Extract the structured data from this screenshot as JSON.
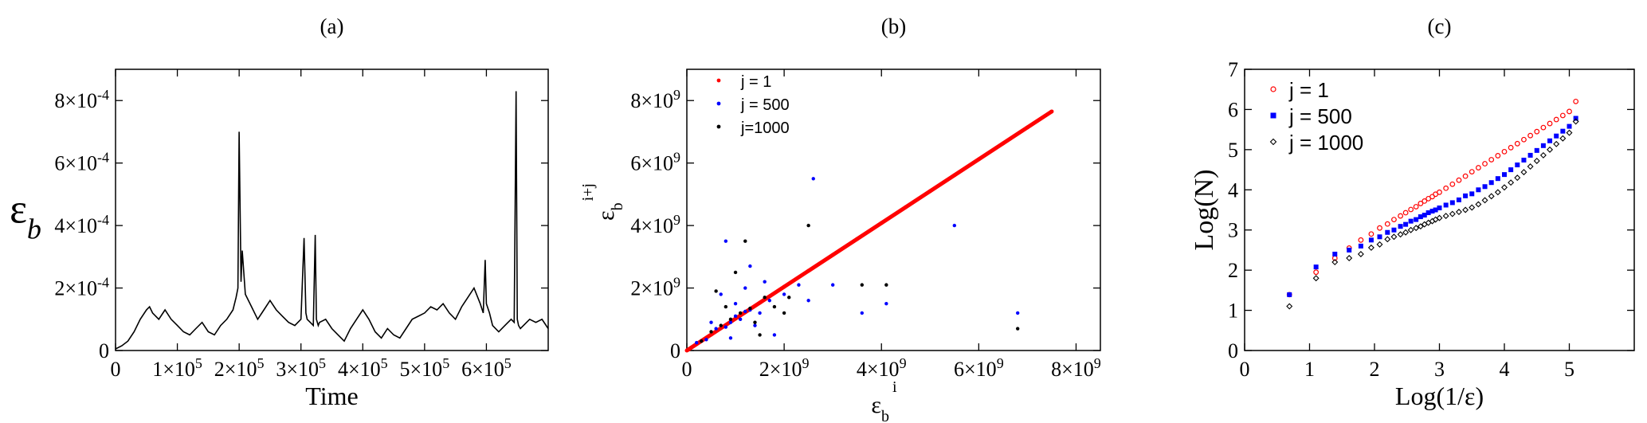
{
  "chart_data": [
    {
      "type": "line",
      "title": "(a)",
      "xlabel": "Time",
      "ylabel_symbol": "ε",
      "ylabel_sub": "b",
      "xlim": [
        0,
        700000
      ],
      "ylim": [
        0,
        0.0009
      ],
      "x_ticks": [
        0,
        100000,
        200000,
        300000,
        400000,
        500000,
        600000
      ],
      "x_tick_labels": [
        {
          "mantissa": "0",
          "exp": ""
        },
        {
          "mantissa": "1×10",
          "exp": "5"
        },
        {
          "mantissa": "2×10",
          "exp": "5"
        },
        {
          "mantissa": "3×10",
          "exp": "5"
        },
        {
          "mantissa": "4×10",
          "exp": "5"
        },
        {
          "mantissa": "5×10",
          "exp": "5"
        },
        {
          "mantissa": "6×10",
          "exp": "5"
        }
      ],
      "y_ticks": [
        0,
        0.0002,
        0.0004,
        0.0006,
        0.0008
      ],
      "y_tick_labels": [
        {
          "mantissa": "0",
          "exp": ""
        },
        {
          "mantissa": "2×10",
          "exp": "-4"
        },
        {
          "mantissa": "4×10",
          "exp": "-4"
        },
        {
          "mantissa": "6×10",
          "exp": "-4"
        },
        {
          "mantissa": "8×10",
          "exp": "-4"
        }
      ],
      "series": [
        {
          "color": "#000000",
          "x": [
            0,
            10000,
            20000,
            30000,
            40000,
            50000,
            55000,
            60000,
            70000,
            80000,
            90000,
            100000,
            110000,
            120000,
            130000,
            140000,
            150000,
            160000,
            170000,
            180000,
            190000,
            195000,
            198000,
            200000,
            203000,
            205000,
            210000,
            220000,
            230000,
            240000,
            250000,
            260000,
            270000,
            280000,
            290000,
            300000,
            305000,
            308000,
            310000,
            315000,
            320000,
            323000,
            325000,
            328000,
            330000,
            340000,
            350000,
            360000,
            370000,
            380000,
            390000,
            400000,
            410000,
            420000,
            430000,
            440000,
            450000,
            460000,
            470000,
            480000,
            490000,
            500000,
            510000,
            520000,
            530000,
            540000,
            550000,
            560000,
            570000,
            580000,
            590000,
            595000,
            598000,
            600000,
            605000,
            610000,
            620000,
            630000,
            640000,
            645000,
            648000,
            650000,
            652000,
            655000,
            660000,
            670000,
            680000,
            690000,
            700000
          ],
          "y": [
            5e-06,
            1.5e-05,
            3e-05,
            6e-05,
            0.0001,
            0.00013,
            0.00014,
            0.00012,
            0.0001,
            0.00013,
            0.0001,
            8e-05,
            6e-05,
            5e-05,
            7e-05,
            9e-05,
            6e-05,
            5e-05,
            8e-05,
            0.0001,
            0.00013,
            0.00017,
            0.0002,
            0.0007,
            0.00022,
            0.00032,
            0.00018,
            0.00014,
            0.0001,
            0.00013,
            0.00016,
            0.00013,
            0.00011,
            9e-05,
            8e-05,
            0.0001,
            0.00036,
            0.00012,
            0.0001,
            9e-05,
            8e-05,
            0.00037,
            0.0001,
            8e-05,
            9e-05,
            0.0001,
            7e-05,
            5e-05,
            3e-05,
            7e-05,
            0.0001,
            0.00013,
            0.0001,
            6e-05,
            4e-05,
            7e-05,
            5e-05,
            4e-05,
            7e-05,
            0.0001,
            0.00011,
            0.00012,
            0.00014,
            0.00013,
            0.00015,
            0.00012,
            0.0001,
            0.00014,
            0.00017,
            0.0002,
            0.00015,
            0.00012,
            0.00029,
            0.00015,
            0.00012,
            8e-05,
            6e-05,
            8e-05,
            0.0001,
            9e-05,
            0.00083,
            0.0001,
            8e-05,
            7e-05,
            8e-05,
            0.0001,
            9e-05,
            0.0001,
            7e-05
          ]
        }
      ]
    },
    {
      "type": "scatter",
      "title": "(b)",
      "xlabel_symbol": "ε",
      "xlabel_sub": "b",
      "xlabel_sup": "i",
      "ylabel_symbol": "ε",
      "ylabel_sub": "b",
      "ylabel_sup": "i+j",
      "xlim": [
        0,
        8500000000
      ],
      "ylim": [
        0,
        9000000000
      ],
      "x_ticks": [
        0,
        2000000000,
        4000000000,
        6000000000,
        8000000000
      ],
      "x_tick_labels": [
        {
          "mantissa": "0",
          "exp": ""
        },
        {
          "mantissa": "2×10",
          "exp": "9"
        },
        {
          "mantissa": "4×10",
          "exp": "9"
        },
        {
          "mantissa": "6×10",
          "exp": "9"
        },
        {
          "mantissa": "8×10",
          "exp": "9"
        }
      ],
      "y_ticks": [
        0,
        2000000000,
        4000000000,
        6000000000,
        8000000000
      ],
      "y_tick_labels": [
        {
          "mantissa": "0",
          "exp": ""
        },
        {
          "mantissa": "2×10",
          "exp": "9"
        },
        {
          "mantissa": "4×10",
          "exp": "9"
        },
        {
          "mantissa": "6×10",
          "exp": "9"
        },
        {
          "mantissa": "8×10",
          "exp": "9"
        }
      ],
      "legend_position": "top-left",
      "series": [
        {
          "name": "j = 1",
          "color": "#ff0000",
          "x": [
            0,
            500000000,
            1000000000,
            1500000000,
            2000000000,
            2500000000,
            3000000000,
            3500000000,
            4000000000,
            4500000000,
            5000000000,
            5500000000,
            6000000000,
            6500000000,
            7000000000,
            7500000000
          ],
          "y": [
            0,
            510000000,
            1020000000,
            1530000000,
            2040000000,
            2550000000,
            3060000000,
            3570000000,
            4080000000,
            4590000000,
            5100000000,
            5610000000,
            6120000000,
            6630000000,
            7140000000,
            7650000000
          ]
        },
        {
          "name": "j = 500",
          "color": "#0000ff",
          "x": [
            200000000,
            400000000,
            600000000,
            800000000,
            900000000,
            1000000000,
            1100000000,
            1200000000,
            1300000000,
            1500000000,
            1700000000,
            800000000,
            1000000000,
            1200000000,
            1400000000,
            1600000000,
            2000000000,
            2300000000,
            2600000000,
            3000000000,
            3600000000,
            4100000000,
            5500000000,
            6800000000,
            900000000,
            1300000000,
            2500000000,
            1800000000,
            500000000,
            700000000
          ],
          "y": [
            250000000,
            350000000,
            700000000,
            750000000,
            900000000,
            1100000000,
            1000000000,
            1250000000,
            1300000000,
            1200000000,
            1600000000,
            3500000000,
            1500000000,
            2000000000,
            800000000,
            2200000000,
            1800000000,
            2100000000,
            5500000000,
            2100000000,
            1200000000,
            1500000000,
            4000000000,
            1200000000,
            400000000,
            2700000000,
            1600000000,
            500000000,
            900000000,
            1800000000
          ]
        },
        {
          "name": "j=1000",
          "color": "#000000",
          "x": [
            300000000,
            500000000,
            700000000,
            900000000,
            1100000000,
            1300000000,
            1600000000,
            1200000000,
            1000000000,
            1400000000,
            1800000000,
            2100000000,
            2500000000,
            3600000000,
            4100000000,
            6800000000,
            800000000,
            600000000,
            1500000000,
            2000000000
          ],
          "y": [
            300000000,
            600000000,
            800000000,
            1000000000,
            1200000000,
            1350000000,
            1700000000,
            3500000000,
            2500000000,
            900000000,
            1400000000,
            1700000000,
            4000000000,
            2100000000,
            2100000000,
            700000000,
            1400000000,
            1900000000,
            500000000,
            1200000000
          ]
        }
      ]
    },
    {
      "type": "scatter",
      "title": "(c)",
      "xlabel": "Log(1/ε)",
      "ylabel": "Log(N)",
      "xlim": [
        0,
        6
      ],
      "ylim": [
        0,
        7
      ],
      "x_ticks": [
        0,
        1,
        2,
        3,
        4,
        5
      ],
      "x_tick_labels": [
        "0",
        "1",
        "2",
        "3",
        "4",
        "5"
      ],
      "y_ticks": [
        0,
        1,
        2,
        3,
        4,
        5,
        6,
        7
      ],
      "y_tick_labels": [
        "0",
        "1",
        "2",
        "3",
        "4",
        "5",
        "6",
        "7"
      ],
      "legend_position": "top-left",
      "series": [
        {
          "name": "j = 1",
          "color": "#ff0000",
          "marker": "open-circle",
          "x": [
            0.69,
            1.1,
            1.39,
            1.61,
            1.79,
            1.95,
            2.08,
            2.2,
            2.3,
            2.4,
            2.48,
            2.56,
            2.64,
            2.71,
            2.77,
            2.83,
            2.89,
            2.94,
            3.0,
            3.1,
            3.2,
            3.3,
            3.4,
            3.5,
            3.6,
            3.7,
            3.8,
            3.9,
            4.0,
            4.1,
            4.2,
            4.3,
            4.4,
            4.5,
            4.6,
            4.7,
            4.8,
            4.9,
            5.0,
            5.1
          ],
          "y": [
            1.39,
            1.95,
            2.3,
            2.55,
            2.75,
            2.9,
            3.05,
            3.15,
            3.26,
            3.35,
            3.43,
            3.51,
            3.58,
            3.66,
            3.72,
            3.78,
            3.83,
            3.89,
            3.94,
            4.04,
            4.14,
            4.24,
            4.34,
            4.45,
            4.55,
            4.65,
            4.75,
            4.85,
            4.95,
            5.05,
            5.15,
            5.25,
            5.35,
            5.45,
            5.55,
            5.65,
            5.75,
            5.85,
            5.95,
            6.2
          ]
        },
        {
          "name": "j = 500",
          "color": "#0000ff",
          "marker": "filled-square",
          "x": [
            0.69,
            1.1,
            1.39,
            1.61,
            1.79,
            1.95,
            2.08,
            2.2,
            2.3,
            2.4,
            2.48,
            2.56,
            2.64,
            2.71,
            2.77,
            2.83,
            2.89,
            2.94,
            3.0,
            3.1,
            3.2,
            3.3,
            3.4,
            3.5,
            3.6,
            3.7,
            3.8,
            3.9,
            4.0,
            4.1,
            4.2,
            4.3,
            4.4,
            4.5,
            4.6,
            4.7,
            4.8,
            4.9,
            5.0,
            5.1
          ],
          "y": [
            1.39,
            2.08,
            2.4,
            2.5,
            2.6,
            2.75,
            2.83,
            2.94,
            3.0,
            3.09,
            3.14,
            3.22,
            3.26,
            3.33,
            3.37,
            3.43,
            3.47,
            3.5,
            3.55,
            3.62,
            3.68,
            3.75,
            3.85,
            3.9,
            4.0,
            4.08,
            4.18,
            4.28,
            4.38,
            4.5,
            4.62,
            4.74,
            4.86,
            4.98,
            5.1,
            5.22,
            5.34,
            5.46,
            5.58,
            5.78
          ]
        },
        {
          "name": "j = 1000",
          "color": "#000000",
          "marker": "diamond",
          "x": [
            0.69,
            1.1,
            1.39,
            1.61,
            1.79,
            1.95,
            2.08,
            2.2,
            2.3,
            2.4,
            2.48,
            2.56,
            2.64,
            2.71,
            2.77,
            2.83,
            2.89,
            2.94,
            3.0,
            3.1,
            3.2,
            3.3,
            3.4,
            3.5,
            3.6,
            3.7,
            3.8,
            3.9,
            4.0,
            4.1,
            4.2,
            4.3,
            4.4,
            4.5,
            4.6,
            4.7,
            4.8,
            4.9,
            5.0,
            5.1
          ],
          "y": [
            1.1,
            1.8,
            2.2,
            2.3,
            2.4,
            2.56,
            2.64,
            2.77,
            2.83,
            2.89,
            2.94,
            3.0,
            3.05,
            3.09,
            3.14,
            3.18,
            3.22,
            3.26,
            3.3,
            3.35,
            3.4,
            3.45,
            3.5,
            3.56,
            3.64,
            3.74,
            3.84,
            3.94,
            4.06,
            4.18,
            4.3,
            4.44,
            4.58,
            4.72,
            4.86,
            5.0,
            5.14,
            5.28,
            5.42,
            5.7
          ]
        }
      ]
    }
  ]
}
